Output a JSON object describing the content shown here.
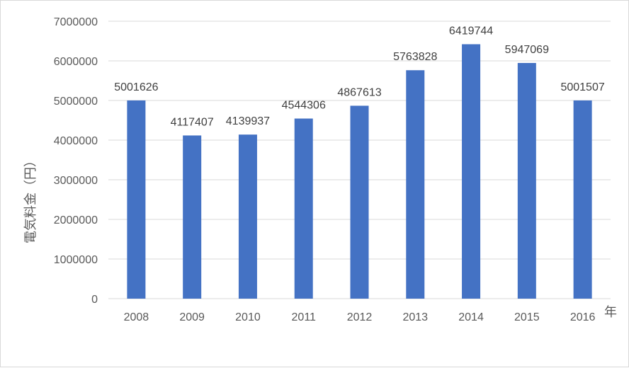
{
  "chart_data": {
    "type": "bar",
    "categories": [
      "2008",
      "2009",
      "2010",
      "2011",
      "2012",
      "2013",
      "2014",
      "2015",
      "2016"
    ],
    "values": [
      5001626,
      4117407,
      4139937,
      4544306,
      4867613,
      5763828,
      6419744,
      5947069,
      5001507
    ],
    "data_labels": [
      "5001626",
      "4117407",
      "4139937",
      "4544306",
      "4867613",
      "5763828",
      "6419744",
      "5947069",
      "5001507"
    ],
    "ylabel": "電気料金（円）",
    "xlabel": "年",
    "ylim": [
      0,
      7000000
    ],
    "yticks": [
      "0",
      "1000000",
      "2000000",
      "3000000",
      "4000000",
      "5000000",
      "6000000",
      "7000000"
    ],
    "grid": true,
    "bar_color": "#4472c4",
    "grid_color": "#d9d9d9"
  }
}
